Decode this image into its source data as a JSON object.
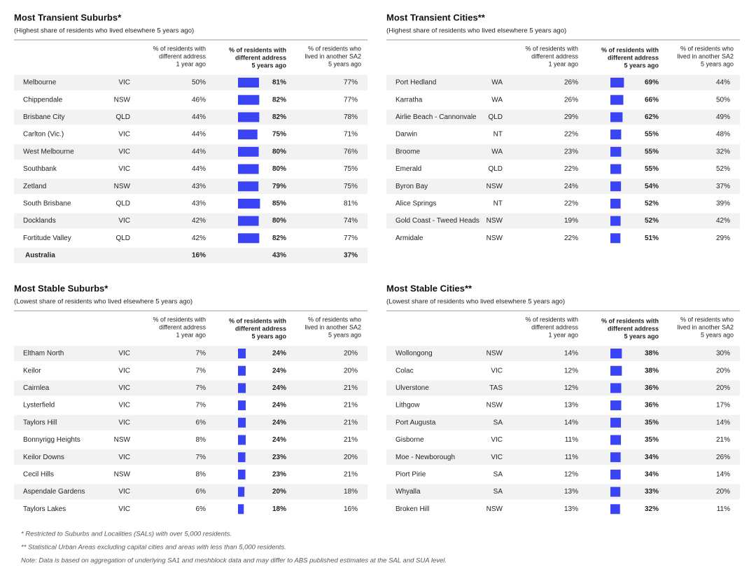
{
  "tables": [
    {
      "title": "Most Transient Suburbs*",
      "subtitle": "(Highest share of residents who lived elsewhere 5 years ago)",
      "columns": [
        [
          "% of residents with",
          "different address",
          "1 year ago"
        ],
        [
          "% of residents with",
          "different address",
          "5 years ago"
        ],
        [
          "% of residents who",
          "lived in another SA2",
          "5 years ago"
        ]
      ],
      "rows": [
        [
          "Melbourne",
          "VIC",
          "50%",
          81,
          "81%",
          "77%"
        ],
        [
          "Chippendale",
          "NSW",
          "46%",
          82,
          "82%",
          "77%"
        ],
        [
          "Brisbane City",
          "QLD",
          "44%",
          82,
          "82%",
          "78%"
        ],
        [
          "Carlton (Vic.)",
          "VIC",
          "44%",
          75,
          "75%",
          "71%"
        ],
        [
          "West Melbourne",
          "VIC",
          "44%",
          80,
          "80%",
          "76%"
        ],
        [
          "Southbank",
          "VIC",
          "44%",
          80,
          "80%",
          "75%"
        ],
        [
          "Zetland",
          "NSW",
          "43%",
          79,
          "79%",
          "75%"
        ],
        [
          "South Brisbane",
          "QLD",
          "43%",
          85,
          "85%",
          "81%"
        ],
        [
          "Docklands",
          "VIC",
          "42%",
          80,
          "80%",
          "74%"
        ],
        [
          "Fortitude Valley",
          "QLD",
          "42%",
          82,
          "82%",
          "77%"
        ]
      ],
      "total": [
        "Australia",
        "16%",
        "43%",
        "37%"
      ]
    },
    {
      "title": "Most Transient Cities**",
      "subtitle": "(Highest share of residents who lived elsewhere 5 years ago)",
      "columns": [
        [
          "% of residents with",
          "different address",
          "1 year ago"
        ],
        [
          "% of residents with",
          "different address",
          "5 years ago"
        ],
        [
          "% of residents who",
          "lived in another SA2",
          "5 years ago"
        ]
      ],
      "rows": [
        [
          "Port  Hedland",
          "WA",
          "26%",
          69,
          "69%",
          "44%"
        ],
        [
          "Karratha",
          "WA",
          "26%",
          66,
          "66%",
          "50%"
        ],
        [
          "Airlie Beach - Cannonvale",
          "QLD",
          "29%",
          62,
          "62%",
          "49%"
        ],
        [
          "Darwin",
          "NT",
          "22%",
          55,
          "55%",
          "48%"
        ],
        [
          "Broome",
          "WA",
          "23%",
          55,
          "55%",
          "32%"
        ],
        [
          "Emerald",
          "QLD",
          "22%",
          55,
          "55%",
          "52%"
        ],
        [
          "Byron Bay",
          "NSW",
          "24%",
          54,
          "54%",
          "37%"
        ],
        [
          "Alice Springs",
          "NT",
          "22%",
          52,
          "52%",
          "39%"
        ],
        [
          "Gold Coast - Tweed Heads",
          "NSW",
          "19%",
          52,
          "52%",
          "42%"
        ],
        [
          "Armidale",
          "NSW",
          "22%",
          51,
          "51%",
          "29%"
        ]
      ]
    },
    {
      "title": "Most Stable Suburbs*",
      "subtitle": "(Lowest share of residents who lived elsewhere 5 years ago)",
      "columns": [
        [
          "% of residents with",
          "different address",
          "1 year ago"
        ],
        [
          "% of residents with",
          "different address",
          "5 years ago"
        ],
        [
          "% of residents who",
          "lived in another SA2",
          "5 years ago"
        ]
      ],
      "rows": [
        [
          "Eltham North",
          "VIC",
          "7%",
          24,
          "24%",
          "20%"
        ],
        [
          "Keilor",
          "VIC",
          "7%",
          24,
          "24%",
          "20%"
        ],
        [
          "Cairnlea",
          "VIC",
          "7%",
          24,
          "24%",
          "21%"
        ],
        [
          "Lysterfield",
          "VIC",
          "7%",
          24,
          "24%",
          "21%"
        ],
        [
          "Taylors Hill",
          "VIC",
          "6%",
          24,
          "24%",
          "21%"
        ],
        [
          "Bonnyrigg Heights",
          "NSW",
          "8%",
          24,
          "24%",
          "21%"
        ],
        [
          "Keilor Downs",
          "VIC",
          "7%",
          23,
          "23%",
          "20%"
        ],
        [
          "Cecil Hills",
          "NSW",
          "8%",
          23,
          "23%",
          "21%"
        ],
        [
          "Aspendale Gardens",
          "VIC",
          "6%",
          20,
          "20%",
          "18%"
        ],
        [
          "Taylors Lakes",
          "VIC",
          "6%",
          18,
          "18%",
          "16%"
        ]
      ]
    },
    {
      "title": "Most Stable Cities**",
      "subtitle": "(Lowest share of residents who lived elsewhere 5 years ago)",
      "columns": [
        [
          "% of residents with",
          "different address",
          "1 year ago"
        ],
        [
          "% of residents with",
          "different address",
          "5 years ago"
        ],
        [
          "% of residents who",
          "lived in another SA2",
          "5 years ago"
        ]
      ],
      "rows": [
        [
          "Wollongong",
          "NSW",
          "14%",
          38,
          "38%",
          "30%"
        ],
        [
          "Colac",
          "VIC",
          "12%",
          38,
          "38%",
          "20%"
        ],
        [
          "Ulverstone",
          "TAS",
          "12%",
          36,
          "36%",
          "20%"
        ],
        [
          "Lithgow",
          "NSW",
          "13%",
          36,
          "36%",
          "17%"
        ],
        [
          "Port Augusta",
          "SA",
          "14%",
          35,
          "35%",
          "14%"
        ],
        [
          "Gisborne",
          "VIC",
          "11%",
          35,
          "35%",
          "21%"
        ],
        [
          "Moe - Newborough",
          "VIC",
          "11%",
          34,
          "34%",
          "26%"
        ],
        [
          "Piort Pirie",
          "SA",
          "12%",
          34,
          "34%",
          "14%"
        ],
        [
          "Whyalla",
          "SA",
          "13%",
          33,
          "33%",
          "20%"
        ],
        [
          "Broken Hill",
          "NSW",
          "13%",
          32,
          "32%",
          "11%"
        ]
      ]
    }
  ],
  "footnotes": [
    "*   Restricted to Suburbs and Localities (SALs) with over 5,000 residents.",
    "** Statistical Urban Areas excluding capital cities and areas with less than 5,000 residents.",
    "Note: Data is based on aggregation of underlying SA1 and meshblock data and may differ to ABS published estimates at the SAL and SUA level."
  ]
}
